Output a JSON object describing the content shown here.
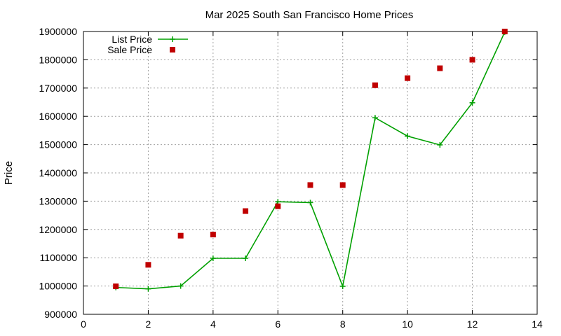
{
  "chart_data": {
    "type": "line",
    "title": "Mar 2025 South San Francisco Home Prices",
    "xlabel": "",
    "ylabel": "Price",
    "xlim": [
      0,
      14
    ],
    "ylim": [
      900000,
      1900000
    ],
    "x_ticks": [
      0,
      2,
      4,
      6,
      8,
      10,
      12,
      14
    ],
    "y_ticks": [
      900000,
      1000000,
      1100000,
      1200000,
      1300000,
      1400000,
      1500000,
      1600000,
      1700000,
      1800000,
      1900000
    ],
    "grid": true,
    "legend_position": "top-left",
    "series": [
      {
        "name": "List Price",
        "style": "line-with-plus-markers",
        "color": "#00a000",
        "x": [
          1,
          2,
          3,
          4,
          5,
          6,
          7,
          8,
          9,
          10,
          11,
          12,
          13
        ],
        "y": [
          995000,
          990000,
          1000000,
          1098000,
          1098000,
          1298000,
          1295000,
          999000,
          1595000,
          1530000,
          1499000,
          1648000,
          1898000
        ]
      },
      {
        "name": "Sale Price",
        "style": "square-markers",
        "color": "#c00000",
        "x": [
          1,
          2,
          3,
          4,
          5,
          6,
          7,
          8,
          9,
          10,
          11,
          12,
          13
        ],
        "y": [
          999000,
          1075000,
          1178000,
          1182000,
          1265000,
          1282000,
          1357000,
          1357000,
          1710000,
          1735000,
          1770000,
          1800000,
          1900000
        ]
      }
    ]
  }
}
